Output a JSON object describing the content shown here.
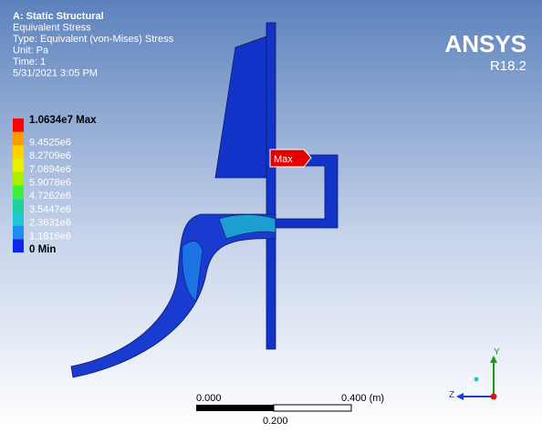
{
  "header": {
    "lines": [
      "A: Static Structural",
      "Equivalent Stress",
      "Type: Equivalent (von-Mises) Stress",
      "Unit: Pa",
      "Time: 1",
      "5/31/2021 3:05 PM"
    ]
  },
  "legend": {
    "entries": [
      {
        "label": "1.0634e7 Max",
        "color": "#ff0000"
      },
      {
        "label": "9.4525e6",
        "color": "#ff9a00"
      },
      {
        "label": "8.2709e6",
        "color": "#ffd200"
      },
      {
        "label": "7.0894e6",
        "color": "#e8f000"
      },
      {
        "label": "5.9078e6",
        "color": "#a8f000"
      },
      {
        "label": "4.7262e6",
        "color": "#3cf03c"
      },
      {
        "label": "3.5447e6",
        "color": "#1ed2a0"
      },
      {
        "label": "2.3631e6",
        "color": "#1ec8d2"
      },
      {
        "label": "1.1816e6",
        "color": "#1e8cf0"
      },
      {
        "label": "0 Min",
        "color": "#0a28e6"
      }
    ]
  },
  "logo": {
    "name": "ANSYS",
    "version": "R18.2"
  },
  "probe": {
    "label": "Max"
  },
  "scale_bar": {
    "start": "0.000",
    "end": "0.400 (m)",
    "middle": "0.200"
  },
  "triad": {
    "y": "Y",
    "z": "Z"
  }
}
